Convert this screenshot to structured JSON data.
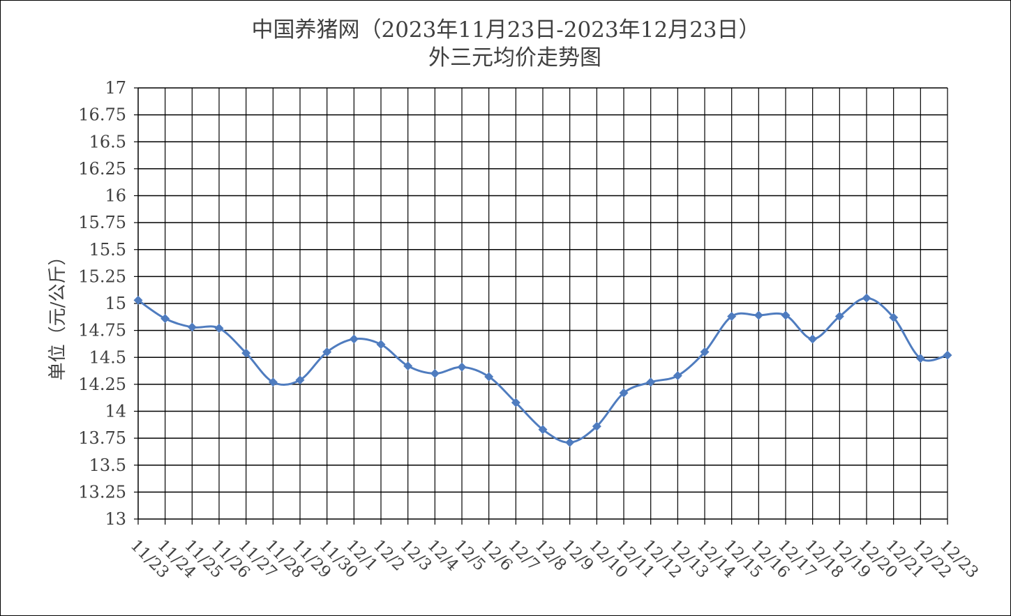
{
  "chart_data": {
    "type": "line",
    "title": "中国养猪网（2023年11月23日-2023年12月23日）",
    "subtitle": "外三元均价走势图",
    "xlabel": "",
    "ylabel": "单位（元/公斤）",
    "ylim": [
      13,
      17
    ],
    "ytick_step": 0.25,
    "grid": true,
    "legend": "none",
    "line_color": "#4F7CBF",
    "grid_color": "#000000",
    "yticks": [
      "13",
      "13.25",
      "13.5",
      "13.75",
      "14",
      "14.25",
      "14.5",
      "14.75",
      "15",
      "15.25",
      "15.5",
      "15.75",
      "16",
      "16.25",
      "16.5",
      "16.75",
      "17"
    ],
    "categories": [
      "11/23",
      "11/24",
      "11/25",
      "11/26",
      "11/27",
      "11/28",
      "11/29",
      "11/30",
      "12/1",
      "12/2",
      "12/3",
      "12/4",
      "12/5",
      "12/6",
      "12/7",
      "12/8",
      "12/9",
      "12/10",
      "12/11",
      "12/12",
      "12/13",
      "12/14",
      "12/15",
      "12/16",
      "12/17",
      "12/18",
      "12/19",
      "12/20",
      "12/21",
      "12/22",
      "12/23"
    ],
    "series": [
      {
        "marker": "diamond",
        "values": [
          15.03,
          14.86,
          14.78,
          14.77,
          14.54,
          14.27,
          14.29,
          14.55,
          14.67,
          14.62,
          14.42,
          14.35,
          14.41,
          14.32,
          14.08,
          13.83,
          13.71,
          13.86,
          14.17,
          14.27,
          14.33,
          14.55,
          14.88,
          14.89,
          14.89,
          14.67,
          14.88,
          15.05,
          14.87,
          14.49,
          14.52
        ]
      }
    ]
  }
}
